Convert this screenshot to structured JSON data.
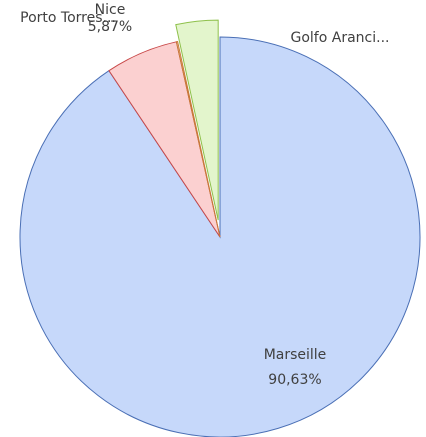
{
  "chart_data": {
    "type": "pie",
    "categories": [
      "Marseille",
      "Nice",
      "Porto Torres...",
      "Golfo Aranci..."
    ],
    "values": [
      90.63,
      5.87,
      0.1,
      3.4
    ],
    "value_labels": [
      "90,63%",
      "5,87%",
      null,
      null
    ],
    "colors": [
      "#c6d8fa",
      "#fbd0d0",
      "#fbe0c8",
      "#e3f5cc"
    ],
    "stroke_colors": [
      "#4a6fb5",
      "#c84848",
      "#c87a3a",
      "#8ec04a"
    ],
    "exploded": [
      false,
      false,
      false,
      true
    ]
  }
}
